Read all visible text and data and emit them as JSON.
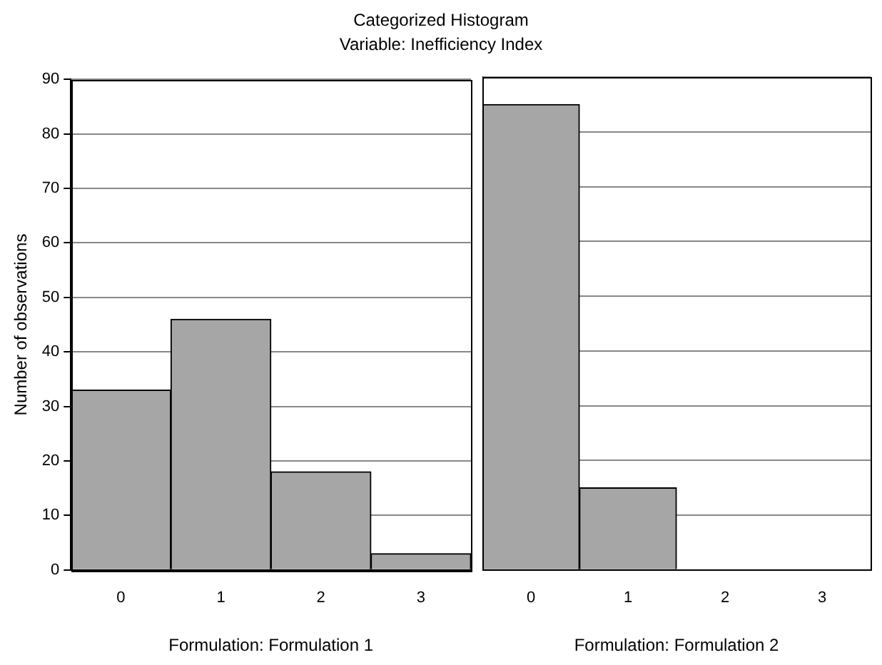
{
  "chart_data": [
    {
      "type": "bar",
      "title": "Categorized Histogram",
      "subtitle": "Variable: Inefficiency Index",
      "xlabel": "Formulation: Formulation 1",
      "ylabel": "Number of observations",
      "categories": [
        "0",
        "1",
        "2",
        "3"
      ],
      "values": [
        33,
        46,
        18,
        3
      ],
      "color": "#a6a6a6",
      "ylim": [
        0,
        90
      ],
      "yticks": [
        0,
        10,
        20,
        30,
        40,
        50,
        60,
        70,
        80,
        90
      ],
      "grid": "y"
    },
    {
      "type": "bar",
      "xlabel": "Formulation: Formulation 2",
      "categories": [
        "0",
        "1",
        "2",
        "3"
      ],
      "values": [
        85,
        15,
        0,
        0
      ],
      "color": "#a6a6a6",
      "ylim": [
        0,
        90
      ],
      "yticks": [
        0,
        10,
        20,
        30,
        40,
        50,
        60,
        70,
        80,
        90
      ],
      "grid": "y",
      "tick_labels": "x"
    }
  ]
}
